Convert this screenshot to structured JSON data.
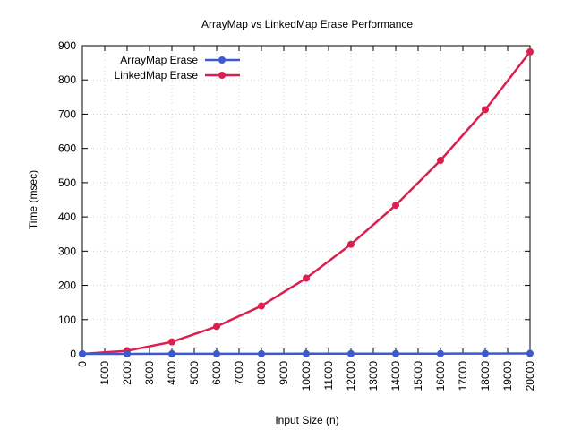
{
  "chart_data": {
    "type": "line",
    "title": "ArrayMap vs LinkedMap Erase Performance",
    "xlabel": "Input Size (n)",
    "ylabel": "Time (msec)",
    "xlim": [
      0,
      20000
    ],
    "ylim": [
      0,
      900
    ],
    "x_ticks": [
      0,
      1000,
      2000,
      3000,
      4000,
      5000,
      6000,
      7000,
      8000,
      9000,
      10000,
      11000,
      12000,
      13000,
      14000,
      15000,
      16000,
      17000,
      18000,
      19000,
      20000
    ],
    "x_tick_labels": [
      "0",
      "1000",
      "2000",
      "3000",
      "4000",
      "5000",
      "6000",
      "7000",
      "8000",
      "9000",
      "10000",
      "11000",
      "12000",
      "13000",
      "14000",
      "15000",
      "16000",
      "17000",
      "18000",
      "19000",
      "20000"
    ],
    "y_ticks": [
      0,
      100,
      200,
      300,
      400,
      500,
      600,
      700,
      800,
      900
    ],
    "y_tick_labels": [
      "0",
      "100",
      "200",
      "300",
      "400",
      "500",
      "600",
      "700",
      "800",
      "900"
    ],
    "grid": true,
    "legend_position": "top-left",
    "x": [
      0,
      2000,
      4000,
      6000,
      8000,
      10000,
      12000,
      14000,
      16000,
      18000,
      20000
    ],
    "series": [
      {
        "name": "ArrayMap Erase",
        "color": "#3a5bd0",
        "values": [
          0,
          0.1,
          0.2,
          0.3,
          0.4,
          0.5,
          0.6,
          0.7,
          0.8,
          1.0,
          1.2
        ]
      },
      {
        "name": "LinkedMap Erase",
        "color": "#dc1f4e",
        "values": [
          0,
          9,
          35,
          80,
          140,
          221,
          320,
          434,
          565,
          713,
          882
        ]
      }
    ]
  }
}
